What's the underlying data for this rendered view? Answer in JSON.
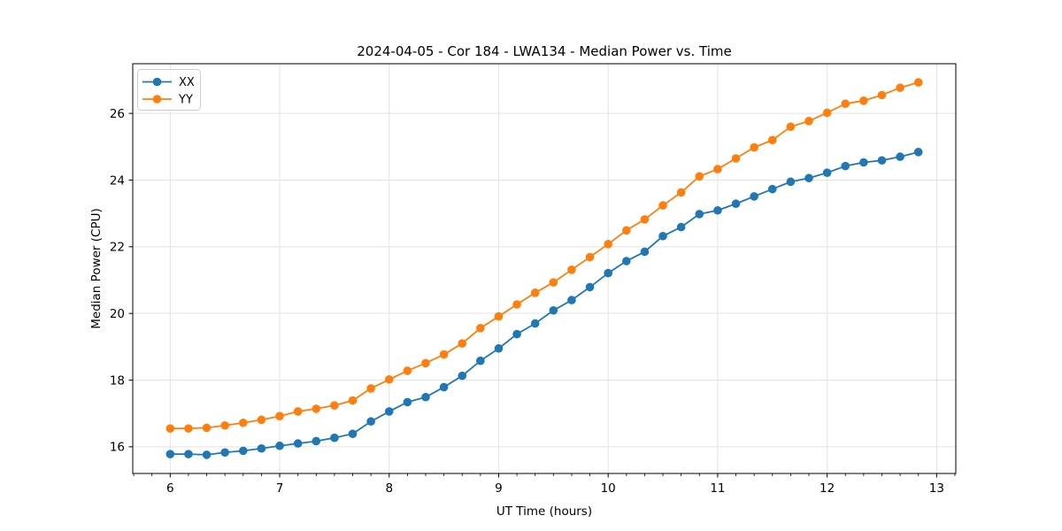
{
  "figure": {
    "title": "2024-04-05 - Cor 184 - LWA134 - Median Power vs. Time",
    "xlabel": "UT Time (hours)",
    "ylabel": "Median Power (CPU)"
  },
  "chart_data": {
    "type": "line",
    "title": "2024-04-05 - Cor 184 - LWA134 - Median Power vs. Time",
    "xlabel": "UT Time (hours)",
    "ylabel": "Median Power (CPU)",
    "xlim": [
      5.658,
      13.175
    ],
    "ylim": [
      15.2,
      27.49
    ],
    "xticks": [
      6,
      7,
      8,
      9,
      10,
      11,
      12,
      13
    ],
    "yticks": [
      16,
      18,
      20,
      22,
      24,
      26
    ],
    "minor_xtick_step_hours": 0.16667,
    "grid": true,
    "legend_position": "upper left",
    "marker": "circle",
    "x_hours": [
      6.0,
      6.1667,
      6.3333,
      6.5,
      6.6667,
      6.8333,
      7.0,
      7.1667,
      7.3333,
      7.5,
      7.6667,
      7.8333,
      8.0,
      8.1667,
      8.3333,
      8.5,
      8.6667,
      8.8333,
      9.0,
      9.1667,
      9.3333,
      9.5,
      9.6667,
      9.8333,
      10.0,
      10.1667,
      10.3333,
      10.5,
      10.6667,
      10.8333,
      11.0,
      11.1667,
      11.3333,
      11.5,
      11.6667,
      11.8333,
      12.0,
      12.1667,
      12.3333,
      12.5,
      12.6667,
      12.8333
    ],
    "series": [
      {
        "name": "XX",
        "color": "#1f77b4",
        "values": [
          15.78,
          15.78,
          15.76,
          15.83,
          15.88,
          15.95,
          16.03,
          16.1,
          16.17,
          16.27,
          16.39,
          16.76,
          17.06,
          17.34,
          17.49,
          17.79,
          18.13,
          18.58,
          18.95,
          19.38,
          19.7,
          20.09,
          20.4,
          20.79,
          21.21,
          21.57,
          21.85,
          22.32,
          22.59,
          22.98,
          23.09,
          23.29,
          23.51,
          23.73,
          23.95,
          24.06,
          24.22,
          24.42,
          24.53,
          24.59,
          24.7,
          24.84
        ]
      },
      {
        "name": "YY",
        "color": "#ff7f0e",
        "values": [
          16.55,
          16.55,
          16.57,
          16.64,
          16.72,
          16.81,
          16.92,
          17.06,
          17.14,
          17.24,
          17.39,
          17.75,
          18.02,
          18.28,
          18.51,
          18.77,
          19.1,
          19.56,
          19.91,
          20.27,
          20.62,
          20.93,
          21.31,
          21.69,
          22.08,
          22.49,
          22.82,
          23.24,
          23.63,
          24.11,
          24.33,
          24.65,
          24.98,
          25.2,
          25.6,
          25.77,
          26.02,
          26.29,
          26.38,
          26.55,
          26.77,
          26.93
        ]
      }
    ]
  },
  "colors": {
    "background": "#ffffff",
    "spine": "#000000",
    "grid": "#e3e3e3",
    "tick": "#000000",
    "text": "#000000",
    "legend_border": "#cccccc",
    "legend_background": "#ffffff"
  }
}
